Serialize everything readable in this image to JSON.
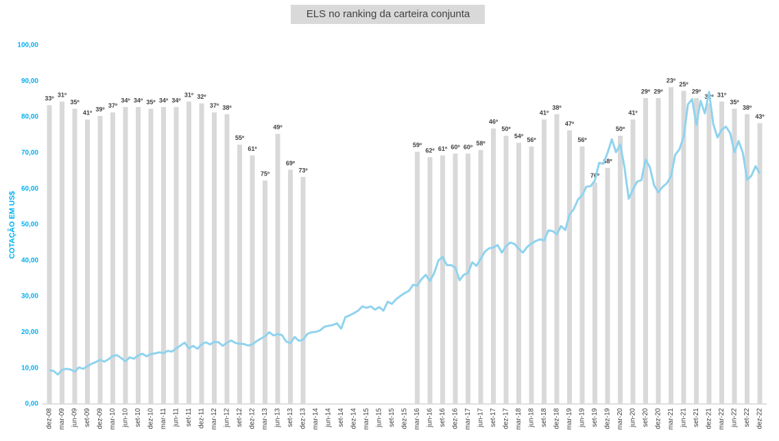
{
  "chart_data": {
    "type": "bar",
    "title": "ELS no ranking da carteira conjunta",
    "y_label": "COTAÇÃO EM US$",
    "categories": [
      "dez-08",
      "mar-09",
      "jun-09",
      "set-09",
      "dez-09",
      "mar-10",
      "jun-10",
      "set-10",
      "dez-10",
      "mar-11",
      "jun-11",
      "set-11",
      "dez-11",
      "mar-12",
      "jun-12",
      "set-12",
      "dez-12",
      "mar-13",
      "jun-13",
      "set-13",
      "dez-13",
      "mar-14",
      "jun-14",
      "set-14",
      "dez-14",
      "mar-15",
      "jun-15",
      "set-15",
      "dez-15",
      "mar-16",
      "jun-16",
      "set-16",
      "dez-16",
      "mar-17",
      "jun-17",
      "set-17",
      "dez-17",
      "mar-18",
      "jun-18",
      "set-18",
      "dez-18",
      "mar-19",
      "jun-19",
      "set-19",
      "dez-19",
      "mar-20",
      "jun-20",
      "set-20",
      "dez-20",
      "mar-21",
      "jun-21",
      "set-21",
      "dez-21",
      "mar-22",
      "jun-22",
      "set-22",
      "dez-22"
    ],
    "bars": {
      "color": "#d9d9d9",
      "values": [
        83.3,
        84.3,
        82.3,
        79.3,
        80.3,
        81.3,
        82.8,
        82.8,
        82.3,
        82.8,
        82.8,
        84.3,
        83.8,
        81.3,
        80.8,
        72.3,
        69.3,
        62.3,
        75.3,
        65.3,
        63.3,
        null,
        null,
        null,
        null,
        null,
        null,
        null,
        null,
        70.3,
        68.8,
        69.3,
        69.8,
        69.8,
        70.8,
        76.8,
        74.8,
        72.8,
        71.8,
        79.3,
        80.8,
        76.3,
        71.8,
        61.8,
        65.8,
        74.8,
        79.3,
        85.3,
        85.3,
        88.3,
        87.3,
        85.3,
        83.8,
        84.3,
        82.3,
        80.8,
        78.3
      ],
      "rank_labels": [
        "33º",
        "31º",
        "35º",
        "41º",
        "39º",
        "37º",
        "34º",
        "34º",
        "35º",
        "34º",
        "34º",
        "31º",
        "32º",
        "37º",
        "38º",
        "55º",
        "61º",
        "75º",
        "49º",
        "69º",
        "73º",
        null,
        null,
        null,
        null,
        null,
        null,
        null,
        null,
        "59º",
        "62º",
        "61º",
        "60º",
        "60º",
        "58º",
        "46º",
        "50º",
        "54º",
        "56º",
        "41º",
        "38º",
        "47º",
        "56º",
        "76º",
        "68º",
        "50º",
        "41º",
        "29º",
        "29º",
        "23º",
        "25º",
        "29º",
        "32º",
        "31º",
        "35º",
        "38º",
        "43º"
      ]
    },
    "line": {
      "color": "#8fd3ee",
      "values": [
        9.4,
        9.2,
        8.2,
        9.5,
        9.8,
        9.6,
        9.0,
        10.2,
        9.8,
        10.5,
        11.2,
        11.7,
        12.3,
        11.8,
        12.5,
        13.4,
        13.6,
        12.8,
        11.9,
        13.0,
        12.6,
        13.5,
        14.0,
        13.3,
        13.9,
        14.1,
        14.4,
        14.2,
        14.8,
        14.6,
        15.5,
        16.3,
        17.1,
        15.5,
        16.2,
        15.4,
        16.6,
        17.2,
        16.6,
        17.3,
        17.2,
        16.2,
        17.1,
        17.7,
        17.0,
        16.8,
        16.7,
        16.3,
        16.6,
        17.5,
        18.2,
        18.9,
        20.0,
        19.1,
        19.5,
        19.2,
        17.4,
        17.0,
        18.7,
        17.6,
        17.9,
        19.5,
        20.0,
        20.1,
        20.5,
        21.5,
        21.8,
        22.0,
        22.5,
        21.0,
        24.2,
        24.7,
        25.3,
        26.0,
        27.2,
        26.8,
        27.2,
        26.3,
        27.0,
        26.0,
        28.5,
        27.9,
        29.2,
        30.1,
        30.9,
        31.5,
        33.2,
        33.0,
        34.8,
        36.0,
        34.3,
        36.5,
        40.0,
        41.0,
        38.7,
        38.7,
        38.0,
        34.5,
        36.0,
        36.5,
        39.5,
        38.5,
        40.5,
        42.5,
        43.4,
        43.6,
        44.3,
        42.2,
        44.0,
        45.0,
        44.6,
        43.2,
        42.2,
        43.8,
        44.7,
        45.4,
        45.9,
        45.6,
        48.4,
        48.2,
        47.3,
        49.6,
        48.5,
        52.8,
        54.3,
        57.0,
        58.2,
        60.6,
        60.7,
        62.3,
        67.2,
        67.0,
        70.0,
        73.8,
        70.2,
        72.3,
        66.0,
        57.2,
        59.8,
        62.0,
        62.4,
        68.1,
        66.0,
        61.0,
        59.0,
        60.5,
        61.5,
        63.5,
        69.5,
        71.0,
        74.5,
        83.5,
        85.0,
        77.8,
        84.5,
        81.0,
        87.0,
        78.0,
        74.3,
        76.5,
        77.3,
        75.5,
        70.2,
        73.3,
        70.0,
        62.5,
        63.6,
        66.3,
        64.3
      ]
    },
    "ylim": [
      0,
      100
    ],
    "yticks": [
      {
        "value": 0,
        "label": "0,00"
      },
      {
        "value": 10,
        "label": "10,00"
      },
      {
        "value": 20,
        "label": "20,00"
      },
      {
        "value": 30,
        "label": "30,00"
      },
      {
        "value": 40,
        "label": "40,00"
      },
      {
        "value": 50,
        "label": "50,00"
      },
      {
        "value": 60,
        "label": "60,00"
      },
      {
        "value": 70,
        "label": "70,00"
      },
      {
        "value": 80,
        "label": "80,00"
      },
      {
        "value": 90,
        "label": "90,00"
      },
      {
        "value": 100,
        "label": "100,00"
      }
    ]
  }
}
